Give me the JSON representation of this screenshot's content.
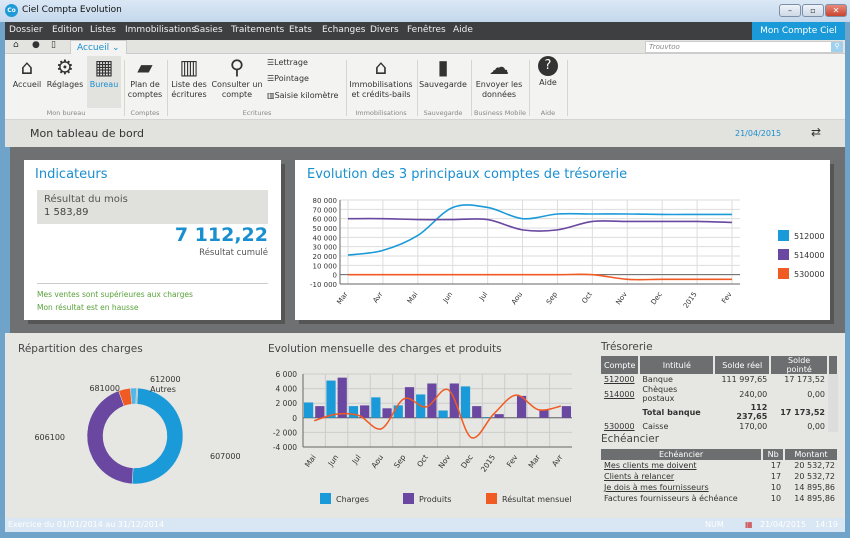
{
  "window": {
    "title": "Ciel Compta Evolution",
    "logo": "Co"
  },
  "menu": [
    "Dossier",
    "Edition",
    "Listes",
    "Immobilisations",
    "Sasies",
    "Traitements",
    "Etats",
    "Echanges",
    "Divers",
    "Fenêtres",
    "Aide"
  ],
  "account_button": "Mon Compte Ciel",
  "quickbar": {
    "tab": "Accueil",
    "search_placeholder": "Trouvtoo"
  },
  "ribbon": {
    "buttons": {
      "accueil": "Accueil",
      "reglages": "Réglages",
      "bureau": "Bureau",
      "plan": "Plan de comptes",
      "liste": "Liste des écritures",
      "consulter": "Consulter un compte",
      "lettrage": "Lettrage",
      "pointage": "Pointage",
      "saisie_km": "Saisie kilomètre",
      "immo": "Immobilisations et crédits-bails",
      "sauvegarde": "Sauvegarde",
      "envoyer": "Envoyer les données",
      "aide": "Aide"
    },
    "groups": {
      "bureau": "Mon bureau",
      "comptes": "Comptes",
      "ecritures": "Ecritures",
      "immo": "Immobilisations",
      "sauvegarde": "Sauvegarde",
      "mobile": "Business Mobile",
      "aide": "Aide"
    }
  },
  "page": {
    "title": "Mon tableau de bord",
    "date": "21/04/2015"
  },
  "indicateurs": {
    "title": "Indicateurs",
    "month_label": "Résultat du mois",
    "month_value": "1 583,89",
    "cumul_value": "7 112,22",
    "cumul_label": "Résultat cumulé",
    "msg1": "Mes ventes sont supérieures aux charges",
    "msg2": "Mon résultat est en hausse"
  },
  "tresorerie_chart_title": "Evolution des 3 principaux comptes de trésorerie",
  "charges_title": "Répartition des charges",
  "evolution_title": "Evolution mensuelle des charges et produits",
  "tresorerie": {
    "title": "Trésorerie",
    "headers": [
      "Compte",
      "Intitulé",
      "Solde réel",
      "Solde pointé"
    ],
    "rows": [
      [
        "512000",
        "Banque",
        "111 997,65",
        "17 173,52"
      ],
      [
        "514000",
        "Chèques postaux",
        "240,00",
        "0,00"
      ],
      [
        "",
        "Total banque",
        "112 237,65",
        "17 173,52"
      ],
      [
        "530000",
        "Caisse",
        "170,00",
        "0,00"
      ]
    ]
  },
  "echeancier": {
    "title": "Echéancier",
    "headers": [
      "Echéancier",
      "Nb",
      "Montant"
    ],
    "rows": [
      [
        "Mes clients me doivent",
        "17",
        "20 532,72"
      ],
      [
        "Clients à relancer",
        "17",
        "20 532,72"
      ],
      [
        "Je dois à mes fournisseurs",
        "10",
        "14 895,86"
      ],
      [
        "Factures fournisseurs à échéance",
        "10",
        "14 895,86"
      ]
    ]
  },
  "status": {
    "exercice": "Exercice du 01/01/2014 au 31/12/2014",
    "num": "NUM",
    "date": "21/04/2015",
    "time": "14:19"
  },
  "colors": {
    "blue": "#1a9ad8",
    "purple": "#6a47a0",
    "orange": "#f05a23",
    "light_blue": "#4fb8e8",
    "grey_blue": "#8fb8cc"
  },
  "chart_data": [
    {
      "type": "line",
      "title": "Evolution des 3 principaux comptes de trésorerie",
      "categories": [
        "Mar",
        "Avr",
        "Mai",
        "Jun",
        "Jul",
        "Aou",
        "Sep",
        "Oct",
        "Nov",
        "Dec",
        "2015",
        "Fev"
      ],
      "yticks": [
        "80 000",
        "70 000",
        "60 000",
        "50 000",
        "40 000",
        "30 000",
        "20 000",
        "10 000",
        "0",
        "-10 000"
      ],
      "ylim": [
        -10000,
        80000
      ],
      "series": [
        {
          "name": "512000",
          "color": "#1a9ad8",
          "values": [
            21000,
            26000,
            42000,
            72000,
            72000,
            60000,
            65000,
            65000,
            65000,
            64500,
            64500,
            64500
          ]
        },
        {
          "name": "514000",
          "color": "#6a47a0",
          "values": [
            60000,
            60000,
            59000,
            59000,
            59000,
            48000,
            48000,
            57000,
            57000,
            57000,
            57000,
            56000
          ]
        },
        {
          "name": "530000",
          "color": "#f05a23",
          "values": [
            0,
            0,
            0,
            0,
            0,
            0,
            0,
            0,
            -5000,
            -5000,
            -5000,
            -5000
          ]
        }
      ],
      "legend": "right"
    },
    {
      "type": "pie",
      "title": "Répartition des charges",
      "labels": [
        "607000",
        "606100",
        "681000",
        "612000",
        "Autres"
      ],
      "values": [
        50,
        43.5,
        4,
        2,
        0.5
      ],
      "colors": [
        "#1a9ad8",
        "#6a47a0",
        "#f05a23",
        "#4fb8e8",
        "#8fb8cc"
      ]
    },
    {
      "type": "bar",
      "title": "Evolution mensuelle des charges et produits",
      "categories": [
        "Mai",
        "Jun",
        "Jul",
        "Aou",
        "Sep",
        "Oct",
        "Nov",
        "Dec",
        "2015",
        "Fev",
        "Mar",
        "Avr"
      ],
      "yticks": [
        "6 000",
        "4 000",
        "2 000",
        "0",
        "-2 000",
        "-4 000"
      ],
      "ylim": [
        -4000,
        6000
      ],
      "series": [
        {
          "name": "Charges",
          "color": "#1a9ad8",
          "values": [
            2100,
            5100,
            1600,
            2800,
            1700,
            3200,
            1000,
            4300,
            100,
            0,
            0,
            0
          ]
        },
        {
          "name": "Produits",
          "color": "#6a47a0",
          "values": [
            1600,
            5500,
            1700,
            1300,
            4200,
            4700,
            4700,
            1600,
            500,
            3000,
            1100,
            1600
          ]
        },
        {
          "name": "Résultat mensuel",
          "color": "#f05a23",
          "type": "line",
          "values": [
            -400,
            500,
            300,
            -1500,
            2600,
            1500,
            3800,
            -2700,
            500,
            3100,
            1100,
            1600
          ]
        }
      ],
      "legend": "bottom"
    }
  ]
}
